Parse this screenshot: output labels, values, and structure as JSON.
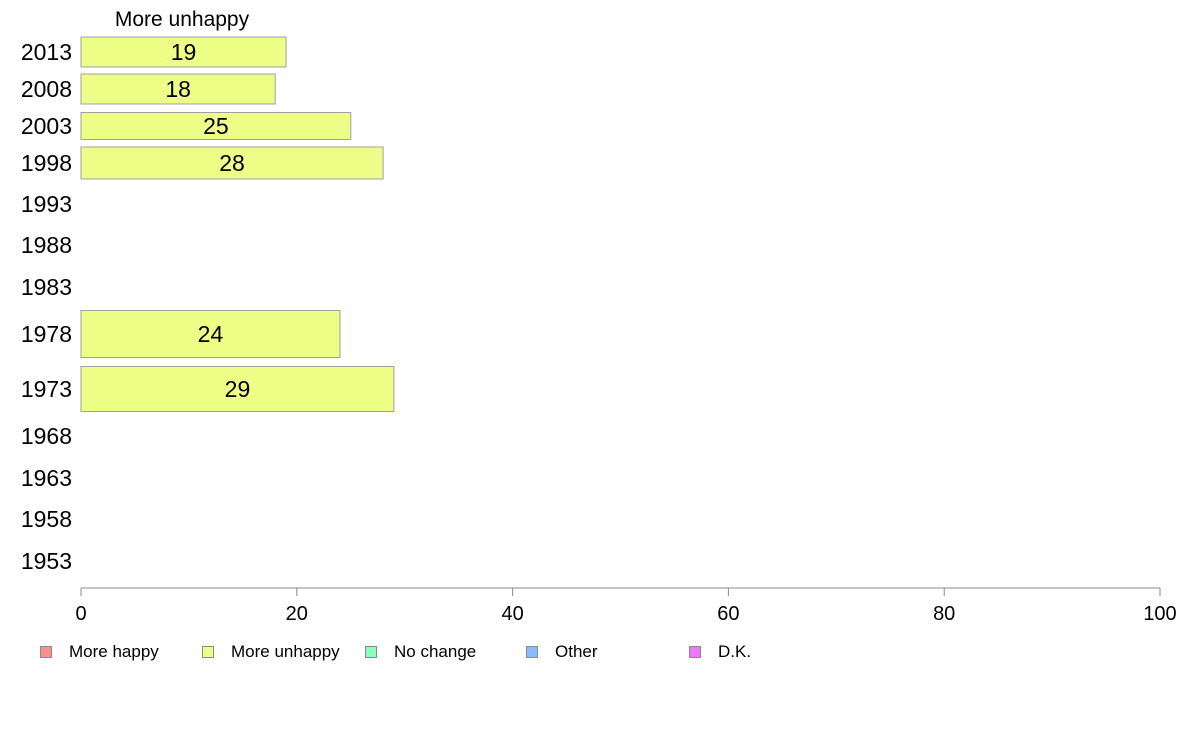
{
  "chart_data": {
    "type": "bar",
    "orientation": "horizontal",
    "title": "More unhappy",
    "categories": [
      "2013",
      "2008",
      "2003",
      "1998",
      "1993",
      "1988",
      "1983",
      "1978",
      "1973",
      "1968",
      "1963",
      "1958",
      "1953"
    ],
    "series": [
      {
        "name": "More unhappy",
        "values": [
          19,
          18,
          25,
          28,
          null,
          null,
          null,
          24,
          29,
          null,
          null,
          null,
          null
        ]
      }
    ],
    "data_labels": [
      "19",
      "18",
      "25",
      "28",
      "",
      "",
      "",
      "24",
      "29",
      "",
      "",
      "",
      ""
    ],
    "xlim": [
      0,
      100
    ],
    "xticks": [
      0,
      20,
      40,
      60,
      80,
      100
    ],
    "grid": false,
    "legend_position": "bottom-left",
    "legend": [
      {
        "label": "More happy",
        "color": "#ff8f8f"
      },
      {
        "label": "More unhappy",
        "color": "#eeff88"
      },
      {
        "label": "No change",
        "color": "#88ffbb"
      },
      {
        "label": "Other",
        "color": "#88bbff"
      },
      {
        "label": "D.K.",
        "color": "#ee77ff"
      }
    ],
    "bar_color": "#eeff88",
    "bar_stroke": "#a0a0a0",
    "axis_color": "#888888"
  }
}
